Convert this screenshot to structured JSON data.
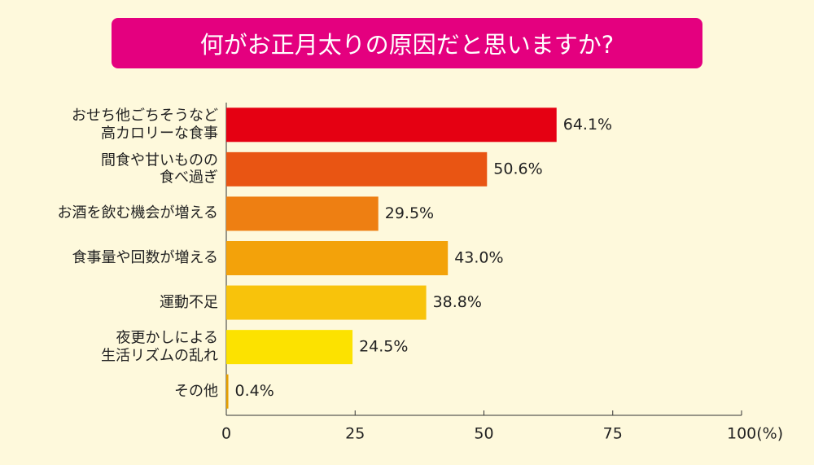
{
  "chart_data": {
    "type": "bar",
    "orientation": "horizontal",
    "title": "何がお正月太りの原因だと思いますか?",
    "categories": [
      "おせち他ごちそうなど\n高カロリーな食事",
      "間食や甘いものの\n食べ過ぎ",
      "お酒を飲む機会が増える",
      "食事量や回数が増える",
      "運動不足",
      "夜更かしによる\n生活リズムの乱れ",
      "その他"
    ],
    "values": [
      64.1,
      50.6,
      29.5,
      43.0,
      38.8,
      24.5,
      0.4
    ],
    "value_labels": [
      "64.1%",
      "50.6%",
      "29.5%",
      "43.0%",
      "38.8%",
      "24.5%",
      "0.4%"
    ],
    "colors": [
      "#e50012",
      "#e95513",
      "#ee7f12",
      "#f3a20a",
      "#f8c30b",
      "#fce200",
      "#e8a000"
    ],
    "xlim": [
      0,
      100
    ],
    "xticks": [
      0,
      25,
      50,
      75,
      {
        "value": 100,
        "label": "100(%)"
      }
    ]
  }
}
